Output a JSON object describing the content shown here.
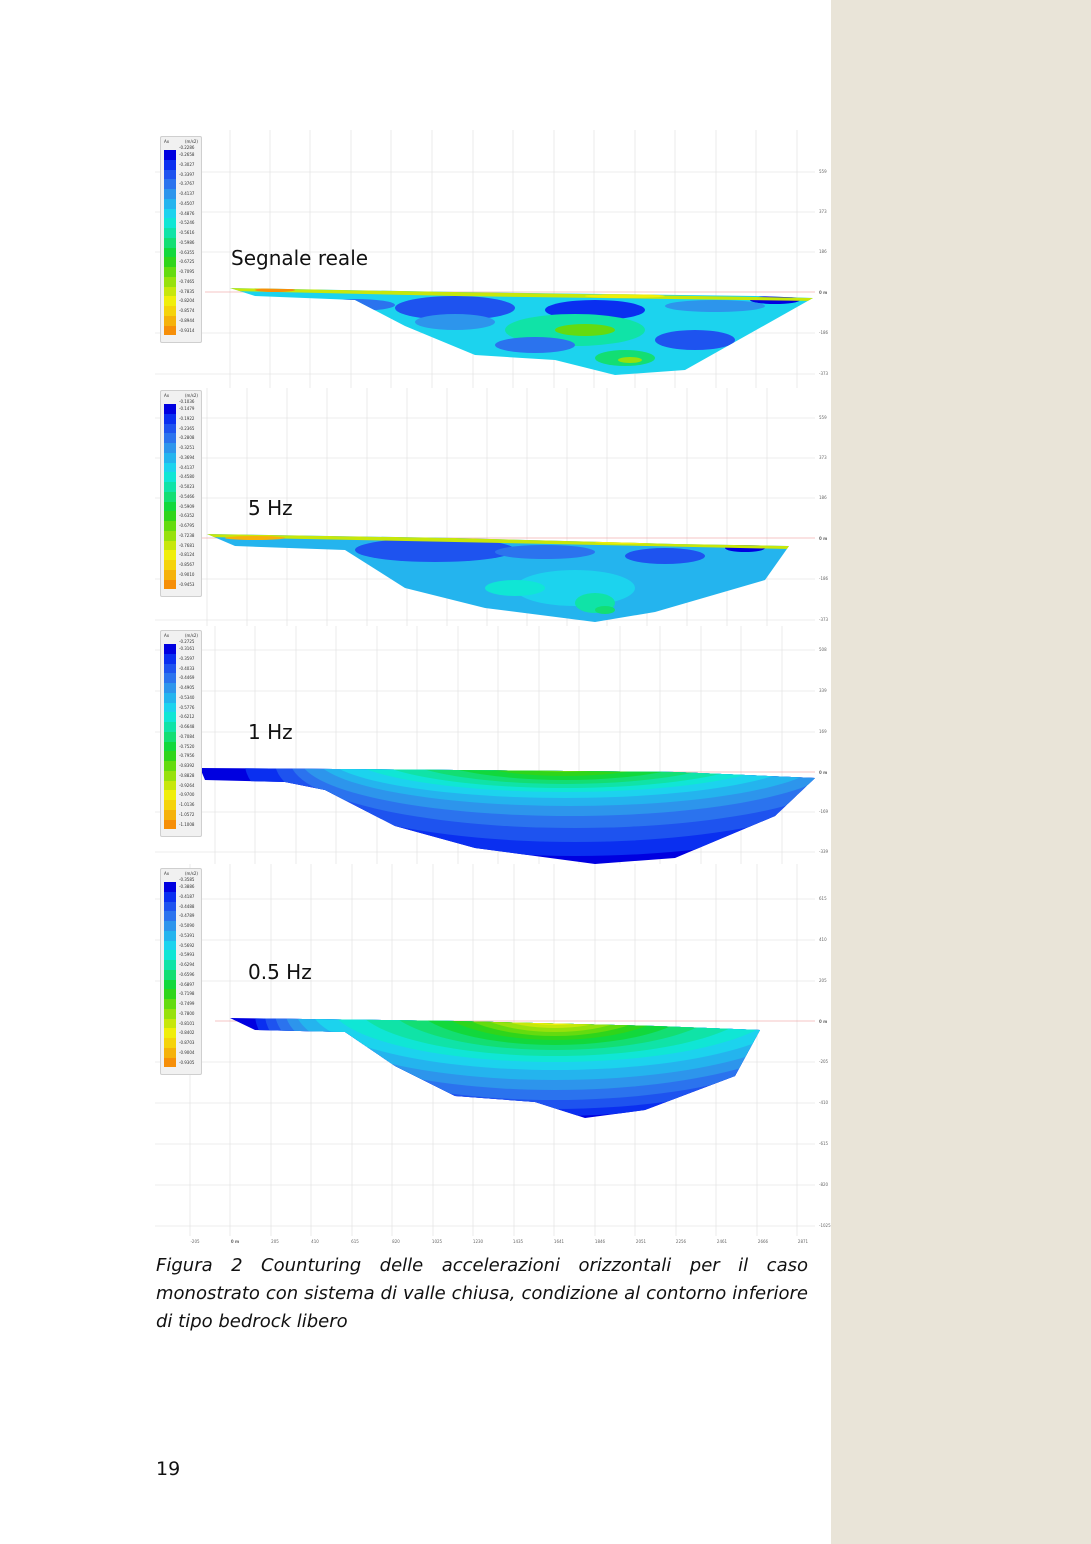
{
  "palette": [
    "#0000e0",
    "#0a2ff0",
    "#1e53ef",
    "#2b73ee",
    "#2d95ec",
    "#24b4ee",
    "#1cd3ee",
    "#10e6d5",
    "#10e3a7",
    "#13de73",
    "#12d83c",
    "#2fd51a",
    "#64db0f",
    "#97e10c",
    "#c7e70b",
    "#f0ee0a",
    "#f5d30a",
    "#f5b20a",
    "#f68f09",
    "#f56a08",
    "#f44207",
    "#ee1c06"
  ],
  "panels": [
    {
      "label": "Segnale reale",
      "legend": {
        "title": "Ax",
        "unit": "(m/s2)",
        "min": "-0.2286",
        "values": [
          "-0.2658",
          "-0.3027",
          "-0.3397",
          "-0.3767",
          "-0.4137",
          "-0.4507",
          "-0.4876",
          "-0.5246",
          "-0.5616",
          "-0.5986",
          "-0.6355",
          "-0.6725",
          "-0.7095",
          "-0.7465",
          "-0.7835",
          "-0.8204",
          "-0.8574",
          "-0.8944",
          "-0.9314"
        ]
      },
      "yticks": [
        "559",
        "373",
        "186",
        "0 m",
        "-186",
        "-373"
      ]
    },
    {
      "label": "5 Hz",
      "legend": {
        "title": "Ax",
        "unit": "(m/s2)",
        "min": "-0.1036",
        "values": [
          "-0.1479",
          "-0.1922",
          "-0.2365",
          "-0.2808",
          "-0.3251",
          "-0.3694",
          "-0.4137",
          "-0.4580",
          "-0.5023",
          "-0.5466",
          "-0.5909",
          "-0.6352",
          "-0.6795",
          "-0.7238",
          "-0.7681",
          "-0.8124",
          "-0.8567",
          "-0.9010",
          "-0.9453"
        ]
      },
      "yticks": [
        "559",
        "373",
        "186",
        "0 m",
        "-186",
        "-373"
      ]
    },
    {
      "label": "1 Hz",
      "legend": {
        "title": "Ax",
        "unit": "(m/s2)",
        "min": "-0.2725",
        "values": [
          "-0.3161",
          "-0.3597",
          "-0.4033",
          "-0.4469",
          "-0.4905",
          "-0.5340",
          "-0.5776",
          "-0.6212",
          "-0.6648",
          "-0.7084",
          "-0.7520",
          "-0.7956",
          "-0.8392",
          "-0.8828",
          "-0.9264",
          "-0.9700",
          "-1.0136",
          "-1.0572",
          "-1.1008"
        ]
      },
      "yticks": [
        "508",
        "339",
        "169",
        "0 m",
        "-169",
        "-339"
      ]
    },
    {
      "label": "0.5 Hz",
      "legend": {
        "title": "Ax",
        "unit": "(m/s2)",
        "min": "-0.3585",
        "values": [
          "-0.3886",
          "-0.4187",
          "-0.4488",
          "-0.4789",
          "-0.5090",
          "-0.5391",
          "-0.5692",
          "-0.5993",
          "-0.6294",
          "-0.6596",
          "-0.6897",
          "-0.7198",
          "-0.7499",
          "-0.7800",
          "-0.8101",
          "-0.8402",
          "-0.8703",
          "-0.9004",
          "-0.9305"
        ]
      },
      "yticks": [
        "615",
        "410",
        "205",
        "0 m",
        "-205",
        "-410",
        "-615",
        "-820",
        "-1025"
      ]
    }
  ],
  "xticks": [
    "-205",
    "0 m",
    "205",
    "410",
    "615",
    "820",
    "1025",
    "1230",
    "1435",
    "1641",
    "1846",
    "2051",
    "2256",
    "2461",
    "2666",
    "2871"
  ],
  "caption": "Figura 2 Counturing delle accelerazioni orizzontali per il caso monostrato con sistema di valle chiusa, condizione al contorno inferiore di tipo bedrock libero",
  "page_number": "19"
}
